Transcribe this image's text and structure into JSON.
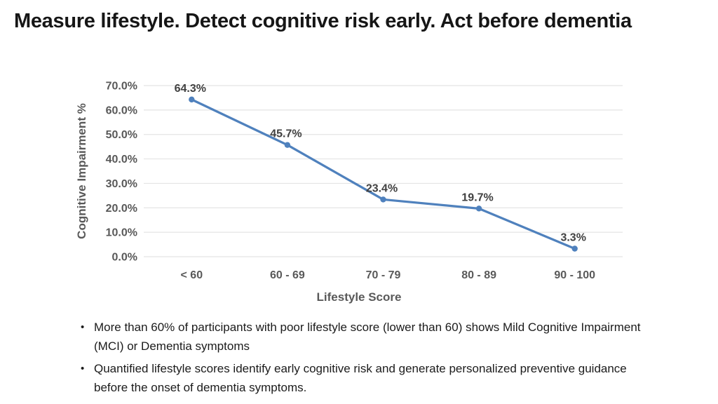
{
  "slide": {
    "title": "Measure lifestyle. Detect cognitive risk early. Act before dementia",
    "bullet_marker": "•",
    "bullets": [
      "More than 60% of participants with poor lifestyle score (lower than 60) shows Mild Cognitive Impairment (MCI) or Dementia symptoms",
      "Quantified lifestyle scores identify early cognitive risk and generate personalized preventive guidance before the onset of dementia symptoms."
    ]
  },
  "chart_data": {
    "type": "line",
    "categories": [
      "< 60",
      "60 - 69",
      "70 - 79",
      "80 - 89",
      "90 - 100"
    ],
    "values": [
      64.3,
      45.7,
      23.4,
      19.7,
      3.3
    ],
    "data_labels": [
      "64.3%",
      "45.7%",
      "23.4%",
      "19.7%",
      "3.3%"
    ],
    "title": "",
    "xlabel": "Lifestyle Score",
    "ylabel": "Cognitive Impairment  %",
    "ylim": [
      0,
      70
    ],
    "ytick_step": 10,
    "ytick_labels": [
      "0.0%",
      "10.0%",
      "20.0%",
      "30.0%",
      "40.0%",
      "50.0%",
      "60.0%",
      "70.0%"
    ],
    "grid": true,
    "legend": "none",
    "line_color": "#4F81BD",
    "marker": "circle",
    "gridline_color": "#E4E4E4",
    "axis_text_color": "#595959",
    "data_label_color": "#404040"
  }
}
